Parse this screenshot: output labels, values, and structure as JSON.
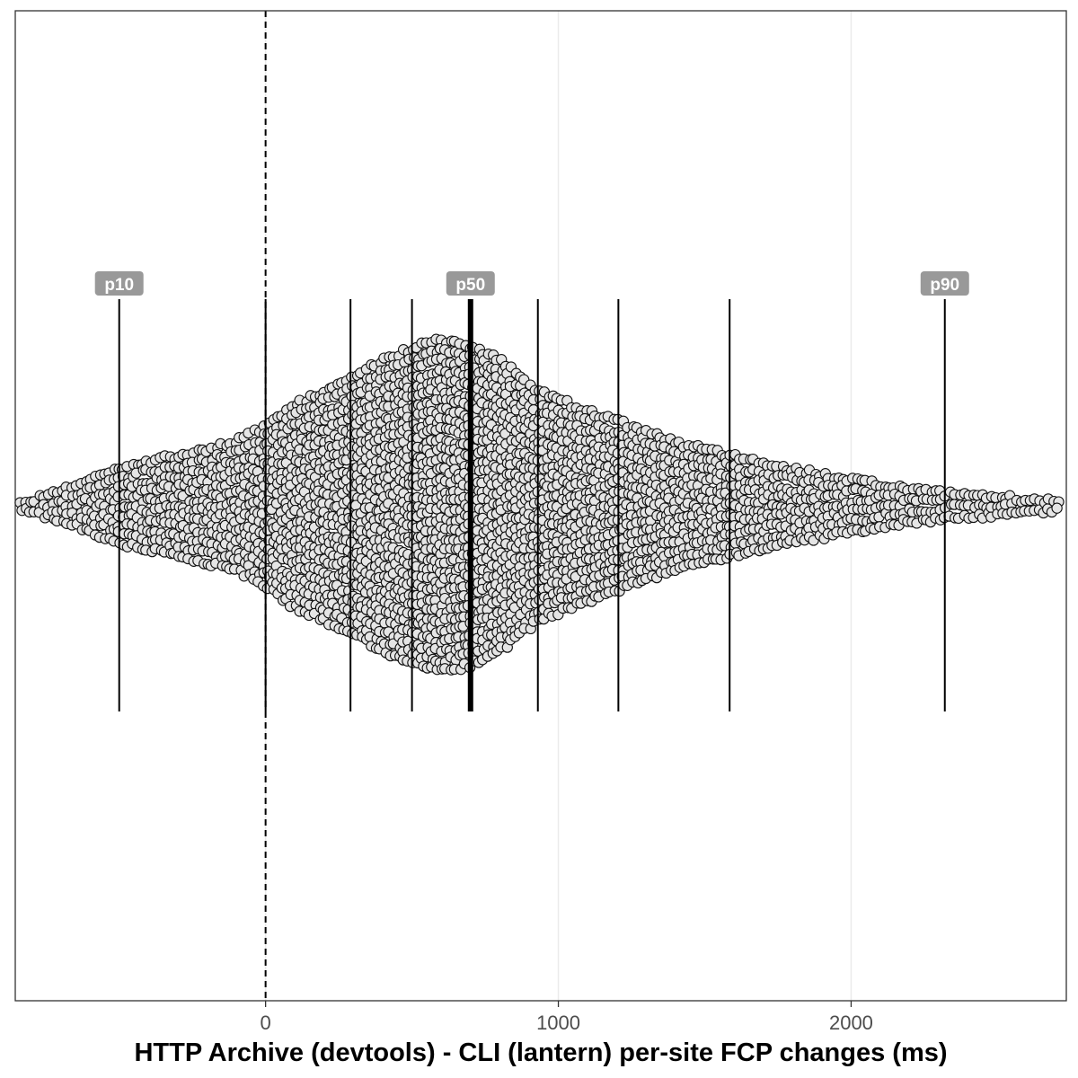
{
  "chart_data": {
    "type": "scatter",
    "subtype": "beeswarm",
    "title": "",
    "xlabel": "HTTP Archive (devtools) - CLI (lantern) per-site FCP changes (ms)",
    "ylabel": "",
    "xlim": [
      -855,
      2735
    ],
    "x_ticks": [
      0,
      1000,
      2000
    ],
    "x_tick_labels": [
      "0",
      "1000",
      "2000"
    ],
    "grid": "vertical major gridlines",
    "reference_line": {
      "x": 0,
      "style": "dashed"
    },
    "decile_lines": [
      -500,
      0,
      290,
      500,
      700,
      930,
      1205,
      1585,
      2320
    ],
    "median_x": 700,
    "percentile_labels": [
      {
        "label": "p10",
        "x": -500
      },
      {
        "label": "p50",
        "x": 700
      },
      {
        "label": "p90",
        "x": 2320
      }
    ],
    "distribution_profile": {
      "x": [
        -855,
        -800,
        -600,
        -500,
        -300,
        -100,
        0,
        100,
        290,
        400,
        500,
        600,
        700,
        800,
        930,
        1100,
        1205,
        1400,
        1585,
        1800,
        2000,
        2200,
        2320,
        2500,
        2735
      ],
      "relative_density": [
        0.04,
        0.06,
        0.18,
        0.25,
        0.32,
        0.4,
        0.5,
        0.62,
        0.77,
        0.88,
        0.95,
        1.0,
        0.96,
        0.88,
        0.7,
        0.58,
        0.52,
        0.4,
        0.32,
        0.24,
        0.18,
        0.12,
        0.1,
        0.08,
        0.05
      ]
    },
    "point_color": "#e5e5e5",
    "point_stroke": "#111111"
  }
}
